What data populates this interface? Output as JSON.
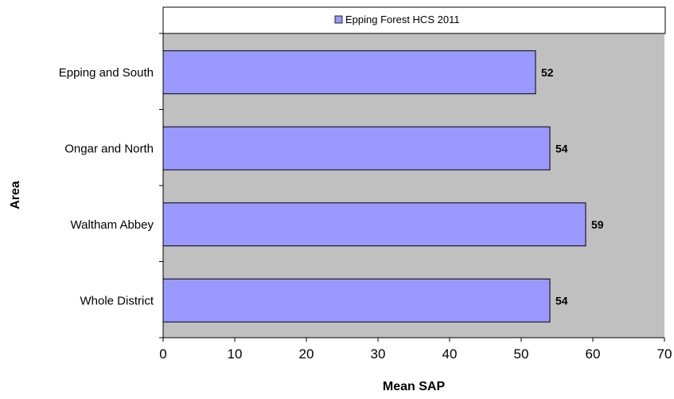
{
  "chart_data": {
    "type": "bar",
    "orientation": "horizontal",
    "categories": [
      "Epping and South",
      "Ongar and North",
      "Waltham Abbey",
      "Whole District"
    ],
    "series": [
      {
        "name": "Epping Forest HCS 2011",
        "values": [
          52,
          54,
          59,
          54
        ],
        "color": "#9999ff"
      }
    ],
    "data_labels": [
      "52",
      "54",
      "59",
      "54"
    ],
    "xlabel": "Mean SAP",
    "ylabel": "Area",
    "xlim": [
      0,
      70
    ],
    "xticks": [
      0,
      10,
      20,
      30,
      40,
      50,
      60,
      70
    ],
    "grid": false,
    "legend_position": "top",
    "plot_background": "#c0c0c0"
  }
}
